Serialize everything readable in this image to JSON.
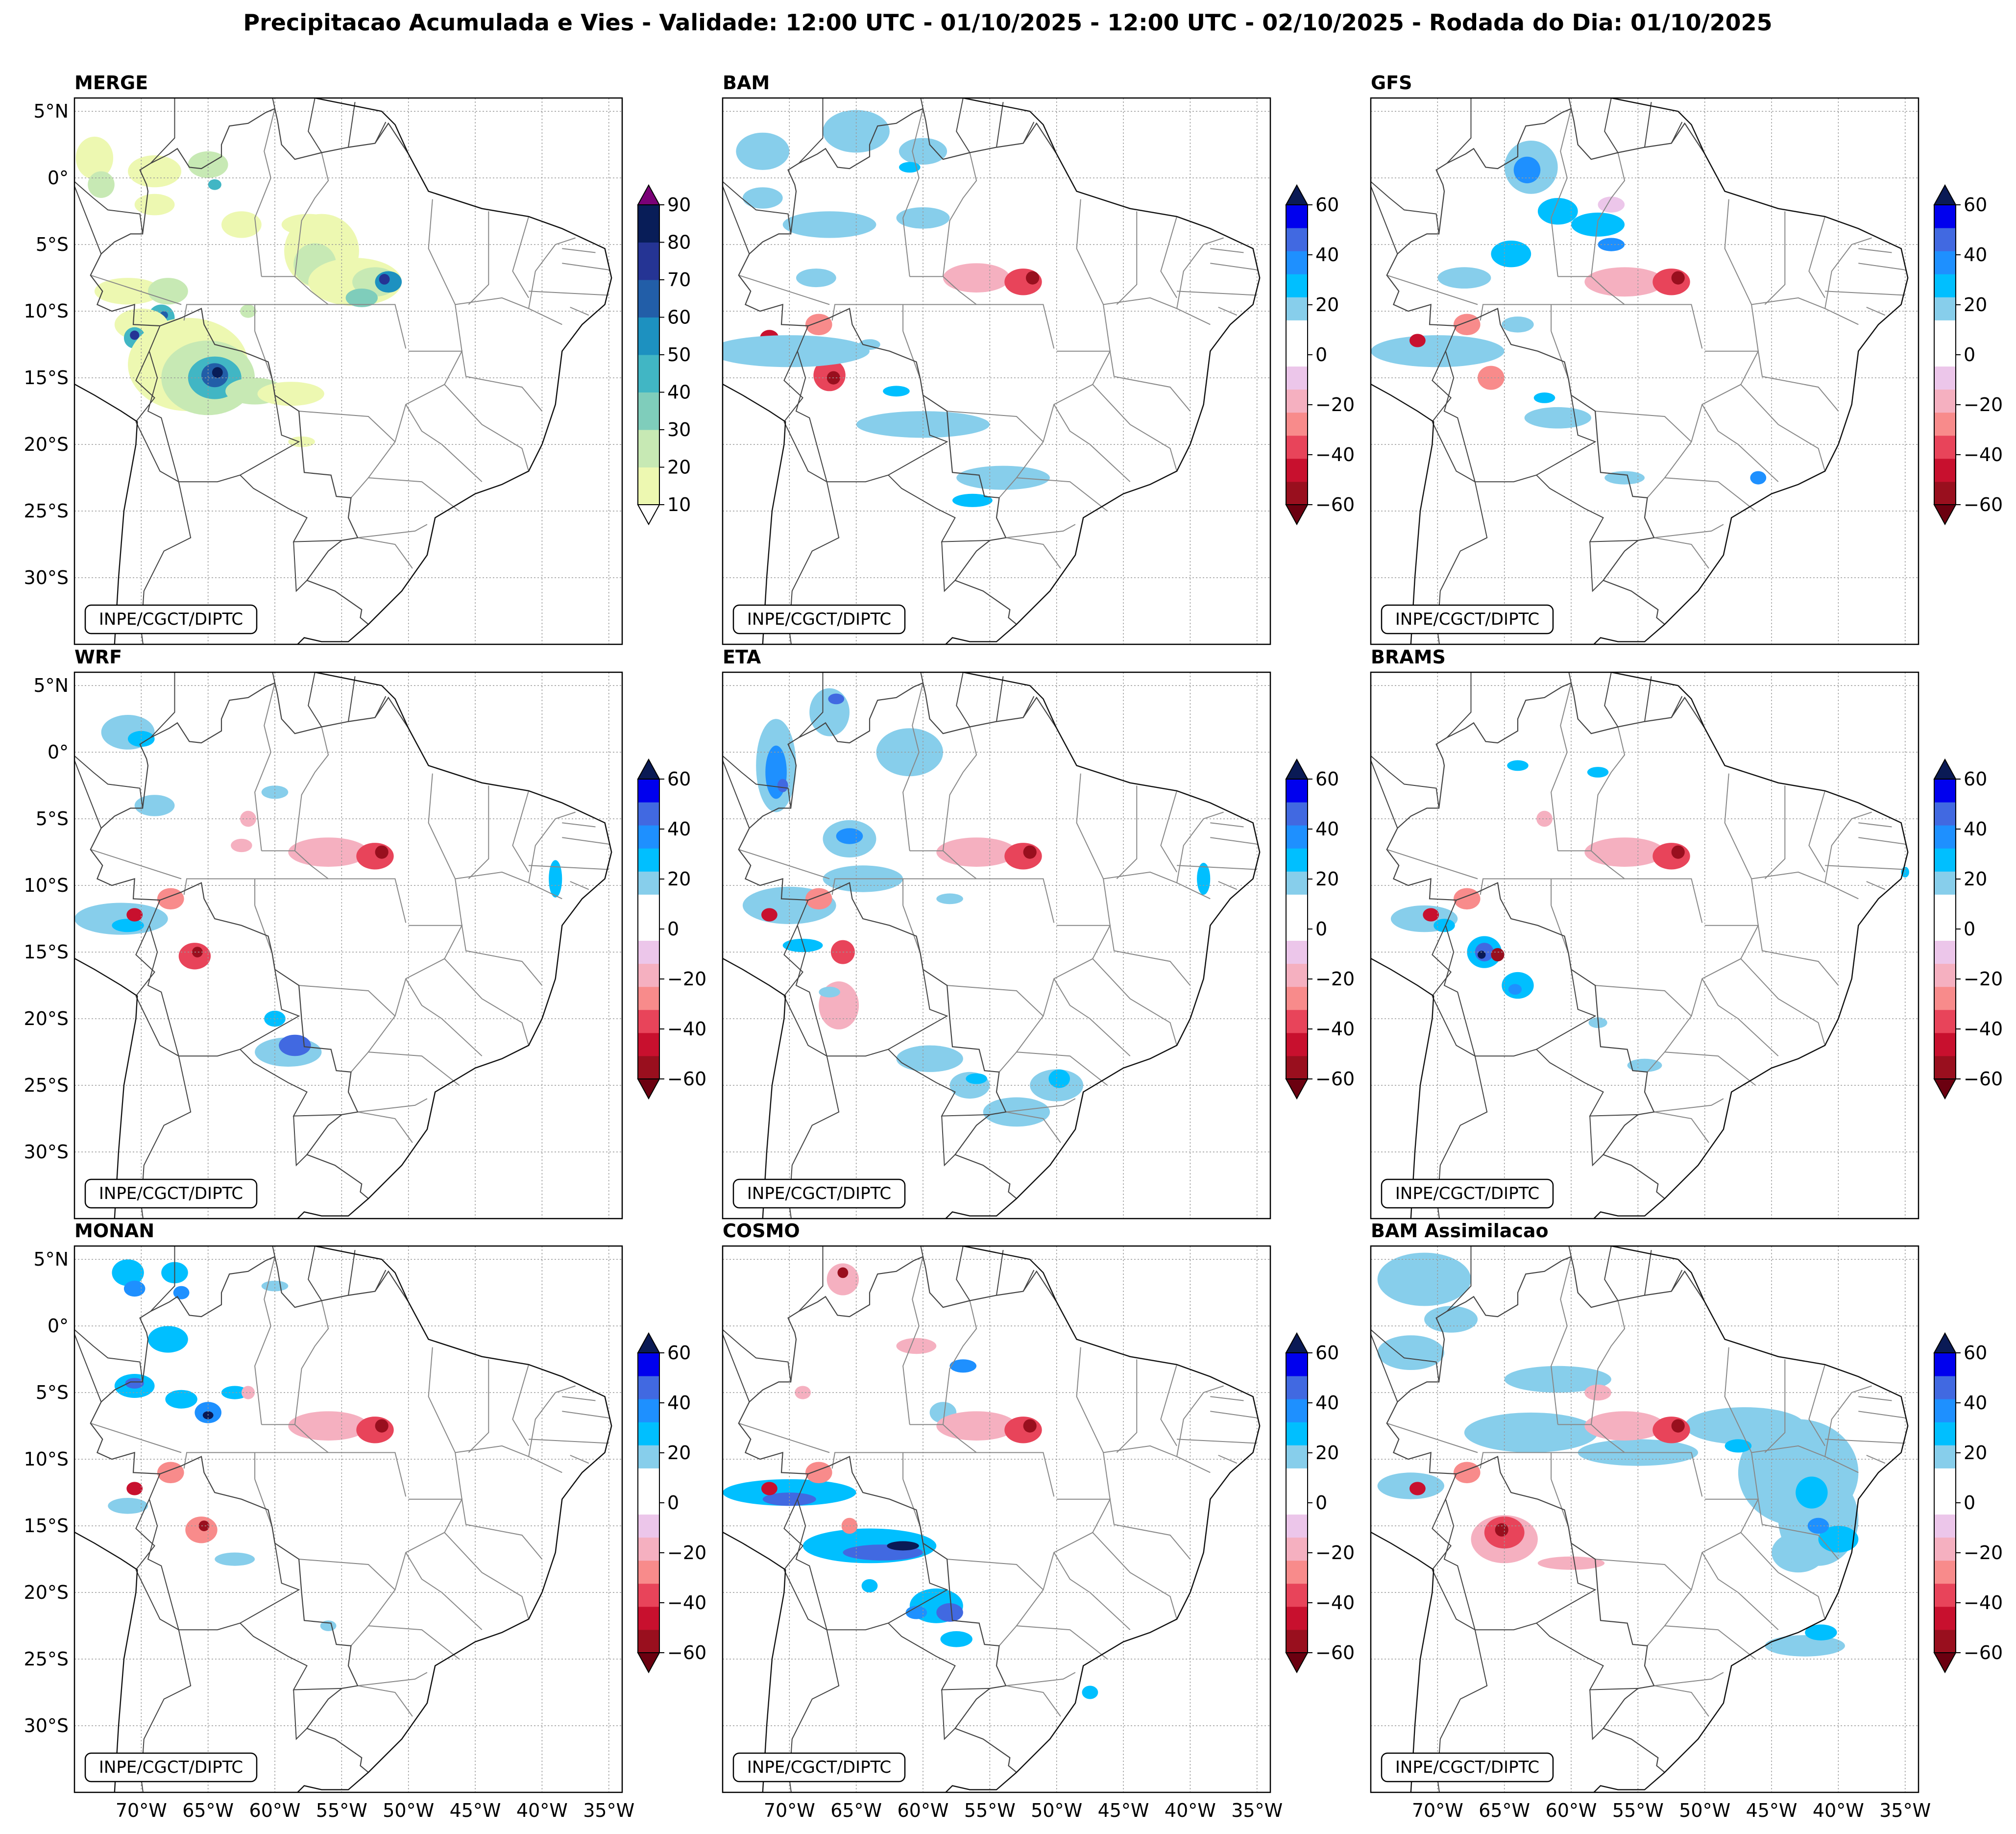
{
  "title": "Precipitacao Acumulada e Vies - Validade: 12:00 UTC - 01/10/2025 - 12:00 UTC - 02/10/2025 - Rodada do Dia: 01/10/2025",
  "credit": "INPE/CGCT/DIPTC",
  "lat_labels": [
    "5°N",
    "0°",
    "5°S",
    "10°S",
    "15°S",
    "20°S",
    "25°S",
    "30°S"
  ],
  "lon_labels": [
    "70°W",
    "65°W",
    "60°W",
    "55°W",
    "50°W",
    "45°W",
    "40°W",
    "35°W"
  ],
  "panels": [
    {
      "name": "MERGE",
      "type": "precip"
    },
    {
      "name": "BAM",
      "type": "bias"
    },
    {
      "name": "GFS",
      "type": "bias"
    },
    {
      "name": "WRF",
      "type": "bias"
    },
    {
      "name": "ETA",
      "type": "bias"
    },
    {
      "name": "BRAMS",
      "type": "bias"
    },
    {
      "name": "MONAN",
      "type": "bias"
    },
    {
      "name": "COSMO",
      "type": "bias"
    },
    {
      "name": "BAM Assimilacao",
      "type": "bias"
    }
  ],
  "colorbars": {
    "precip": {
      "ticks": [
        "90",
        "80",
        "70",
        "60",
        "50",
        "40",
        "30",
        "20",
        "10"
      ],
      "colors": [
        "#edf8b1",
        "#c7e9b4",
        "#7fcdbb",
        "#41b6c4",
        "#1d91c0",
        "#225ea8",
        "#253494",
        "#081d58"
      ],
      "extend_max_color": "#7a0177",
      "extend_min_color": "#ffffff"
    },
    "bias": {
      "ticks": [
        "60",
        "40",
        "20",
        "0",
        "−20",
        "−40",
        "−60"
      ],
      "colors": [
        "#990f1e",
        "#c8102e",
        "#e8445a",
        "#f88b8b",
        "#f5b0c0",
        "#ecc6ea",
        "#ffffff",
        "#ffffff",
        "#87ceeb",
        "#00bfff",
        "#1e90ff",
        "#4169e1",
        "#0000ee"
      ],
      "extend_max_color": "#0a1a55",
      "extend_min_color": "#6b0010"
    }
  }
}
